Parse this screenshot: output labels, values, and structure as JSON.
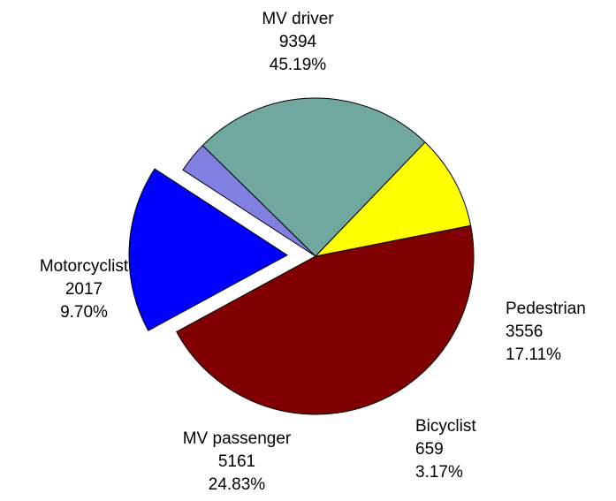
{
  "chart_data": {
    "type": "pie",
    "categories": [
      "MV driver",
      "Pedestrian",
      "Bicyclist",
      "MV passenger",
      "Motorcyclist"
    ],
    "values": [
      9394,
      3556,
      659,
      5161,
      2017
    ],
    "percent_labels": [
      "45.19%",
      "17.11%",
      "3.17%",
      "24.83%",
      "9.70%"
    ],
    "colors": [
      "#800000",
      "#0000ff",
      "#8080e0",
      "#70a8a0",
      "#ffff00"
    ],
    "exploded": [
      "Pedestrian"
    ]
  }
}
